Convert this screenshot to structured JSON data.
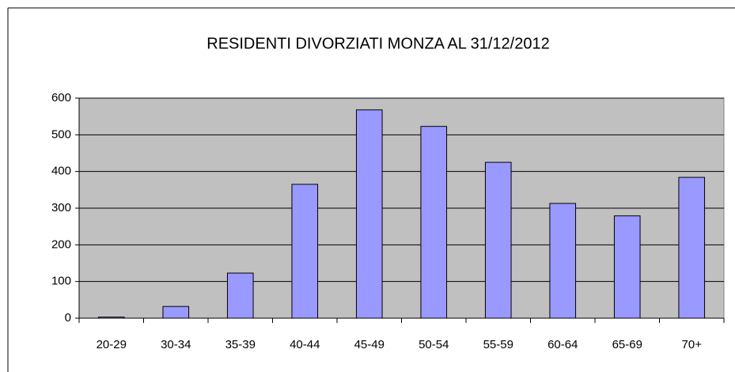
{
  "chart_data": {
    "type": "bar",
    "title": "RESIDENTI DIVORZIATI MONZA AL 31/12/2012",
    "categories": [
      "20-29",
      "30-34",
      "35-39",
      "40-44",
      "45-49",
      "50-54",
      "55-59",
      "60-64",
      "65-69",
      "70+"
    ],
    "values": [
      3,
      32,
      123,
      365,
      568,
      523,
      425,
      313,
      279,
      384
    ],
    "color": "#9999ff",
    "plot_background": "#c0c0c0",
    "ylim": [
      0,
      600
    ],
    "yticks": [
      0,
      100,
      200,
      300,
      400,
      500,
      600
    ],
    "grid": true
  }
}
